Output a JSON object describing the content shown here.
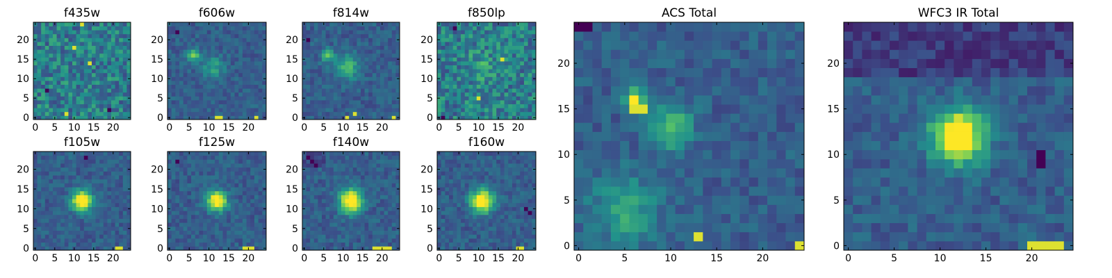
{
  "figure": {
    "colormap": "viridis",
    "colormap_stops": [
      "#440154",
      "#3b528b",
      "#21918c",
      "#5ec962",
      "#fde725"
    ],
    "panel_border_color": "#000000"
  },
  "chart_data": [
    {
      "type": "heatmap",
      "title": "f435w",
      "xlim": [
        0,
        24
      ],
      "ylim": [
        0,
        24
      ],
      "xticks": [
        "0",
        "5",
        "10",
        "15",
        "20"
      ],
      "yticks": [
        "0",
        "5",
        "10",
        "15",
        "20"
      ],
      "grid": false,
      "description": "noise",
      "sources": [],
      "bright_pixels": [
        [
          12,
          24
        ],
        [
          8,
          1
        ],
        [
          14,
          14
        ],
        [
          10,
          18
        ]
      ],
      "dark_pixels": [
        [
          3,
          7
        ],
        [
          19,
          2
        ]
      ]
    },
    {
      "type": "heatmap",
      "title": "f606w",
      "xlim": [
        0,
        24
      ],
      "ylim": [
        0,
        24
      ],
      "xticks": [
        "0",
        "5",
        "10",
        "15",
        "20"
      ],
      "yticks": [
        "0",
        "5",
        "10",
        "15",
        "20"
      ],
      "grid": false,
      "description": "faint compact source",
      "sources": [
        {
          "x": 6,
          "y": 16,
          "peak": 0.45,
          "sigma": 1.2
        },
        {
          "x": 11,
          "y": 13,
          "peak": 0.25,
          "sigma": 2.0
        }
      ],
      "bright_pixels": [
        [
          12,
          0
        ],
        [
          13,
          0
        ],
        [
          22,
          0
        ]
      ],
      "dark_pixels": [
        [
          2,
          22
        ]
      ]
    },
    {
      "type": "heatmap",
      "title": "f814w",
      "xlim": [
        0,
        24
      ],
      "ylim": [
        0,
        24
      ],
      "xticks": [
        "0",
        "5",
        "10",
        "15",
        "20"
      ],
      "yticks": [
        "0",
        "5",
        "10",
        "15",
        "20"
      ],
      "grid": false,
      "description": "extended faint emission",
      "sources": [
        {
          "x": 6,
          "y": 16,
          "peak": 0.4,
          "sigma": 1.2
        },
        {
          "x": 11,
          "y": 13,
          "peak": 0.35,
          "sigma": 2.2
        }
      ],
      "bright_pixels": [
        [
          11,
          0
        ],
        [
          13,
          1
        ],
        [
          23,
          0
        ]
      ],
      "dark_pixels": [
        [
          1,
          20
        ]
      ]
    },
    {
      "type": "heatmap",
      "title": "f850lp",
      "xlim": [
        0,
        24
      ],
      "ylim": [
        0,
        24
      ],
      "xticks": [
        "0",
        "5",
        "10",
        "15",
        "20"
      ],
      "yticks": [
        "0",
        "5",
        "10",
        "15",
        "20"
      ],
      "grid": false,
      "description": "noise",
      "sources": [
        {
          "x": 10,
          "y": 13,
          "peak": 0.15,
          "sigma": 2.5
        }
      ],
      "bright_pixels": [
        [
          16,
          15
        ],
        [
          10,
          5
        ]
      ],
      "dark_pixels": [
        [
          1,
          0
        ],
        [
          4,
          23
        ]
      ]
    },
    {
      "type": "heatmap",
      "title": "f105w",
      "xlim": [
        0,
        24
      ],
      "ylim": [
        0,
        24
      ],
      "xticks": [
        "0",
        "5",
        "10",
        "15",
        "20"
      ],
      "yticks": [
        "0",
        "5",
        "10",
        "15",
        "20"
      ],
      "grid": false,
      "description": "central compact source",
      "sources": [
        {
          "x": 12,
          "y": 12,
          "peak": 0.85,
          "sigma": 1.8
        }
      ],
      "bright_pixels": [
        [
          21,
          0
        ],
        [
          22,
          0
        ]
      ],
      "dark_pixels": [
        [
          13,
          23
        ]
      ]
    },
    {
      "type": "heatmap",
      "title": "f125w",
      "xlim": [
        0,
        24
      ],
      "ylim": [
        0,
        24
      ],
      "xticks": [
        "0",
        "5",
        "10",
        "15",
        "20"
      ],
      "yticks": [
        "0",
        "5",
        "10",
        "15",
        "20"
      ],
      "grid": false,
      "description": "central compact source",
      "sources": [
        {
          "x": 12,
          "y": 12,
          "peak": 0.85,
          "sigma": 1.7
        }
      ],
      "bright_pixels": [
        [
          19,
          0
        ],
        [
          20,
          0
        ],
        [
          21,
          0
        ]
      ],
      "dark_pixels": [
        [
          2,
          22
        ]
      ]
    },
    {
      "type": "heatmap",
      "title": "f140w",
      "xlim": [
        0,
        24
      ],
      "ylim": [
        0,
        24
      ],
      "xticks": [
        "0",
        "5",
        "10",
        "15",
        "20"
      ],
      "yticks": [
        "0",
        "5",
        "10",
        "15",
        "20"
      ],
      "grid": false,
      "description": "central compact source",
      "sources": [
        {
          "x": 12,
          "y": 12,
          "peak": 0.9,
          "sigma": 2.0
        }
      ],
      "bright_pixels": [
        [
          18,
          0
        ],
        [
          19,
          0
        ],
        [
          20,
          0
        ],
        [
          21,
          0
        ],
        [
          22,
          0
        ]
      ],
      "dark_pixels": [
        [
          2,
          22
        ],
        [
          3,
          21
        ],
        [
          1,
          23
        ]
      ]
    },
    {
      "type": "heatmap",
      "title": "f160w",
      "xlim": [
        0,
        24
      ],
      "ylim": [
        0,
        24
      ],
      "xticks": [
        "0",
        "5",
        "10",
        "15",
        "20"
      ],
      "yticks": [
        "0",
        "5",
        "10",
        "15",
        "20"
      ],
      "grid": false,
      "description": "central compact source",
      "sources": [
        {
          "x": 11,
          "y": 12,
          "peak": 0.85,
          "sigma": 2.0
        }
      ],
      "bright_pixels": [
        [
          20,
          0
        ],
        [
          21,
          0
        ]
      ],
      "dark_pixels": [
        [
          22,
          10
        ],
        [
          23,
          9
        ]
      ]
    },
    {
      "type": "heatmap",
      "title": "ACS Total",
      "xlim": [
        0,
        24
      ],
      "ylim": [
        0,
        24
      ],
      "xticks": [
        "0",
        "5",
        "10",
        "15",
        "20"
      ],
      "yticks": [
        "0",
        "5",
        "10",
        "15",
        "20"
      ],
      "grid": false,
      "description": "stacked optical image",
      "sources": [
        {
          "x": 6,
          "y": 16,
          "peak": 0.75,
          "sigma": 0.7
        },
        {
          "x": 10,
          "y": 13,
          "peak": 0.4,
          "sigma": 1.6
        },
        {
          "x": 5,
          "y": 4,
          "peak": 0.3,
          "sigma": 2.5
        }
      ],
      "bright_pixels": [
        [
          6,
          15
        ],
        [
          7,
          15
        ],
        [
          24,
          0
        ],
        [
          13,
          1
        ]
      ],
      "dark_pixels": [
        [
          0,
          24
        ],
        [
          1,
          24
        ]
      ]
    },
    {
      "type": "heatmap",
      "title": "WFC3 IR Total",
      "xlim": [
        0,
        24
      ],
      "ylim": [
        0,
        24
      ],
      "xticks": [
        "0",
        "5",
        "10",
        "15",
        "20"
      ],
      "yticks": [
        "0",
        "5",
        "10",
        "15",
        "20"
      ],
      "grid": false,
      "description": "stacked infrared image",
      "sources": [
        {
          "x": 12,
          "y": 12,
          "peak": 0.9,
          "sigma": 2.0
        }
      ],
      "bright_pixels": [
        [
          20,
          0
        ],
        [
          21,
          0
        ],
        [
          22,
          0
        ],
        [
          23,
          0
        ]
      ],
      "dark_pixels": [
        [
          21,
          10
        ],
        [
          21,
          9
        ]
      ]
    }
  ]
}
